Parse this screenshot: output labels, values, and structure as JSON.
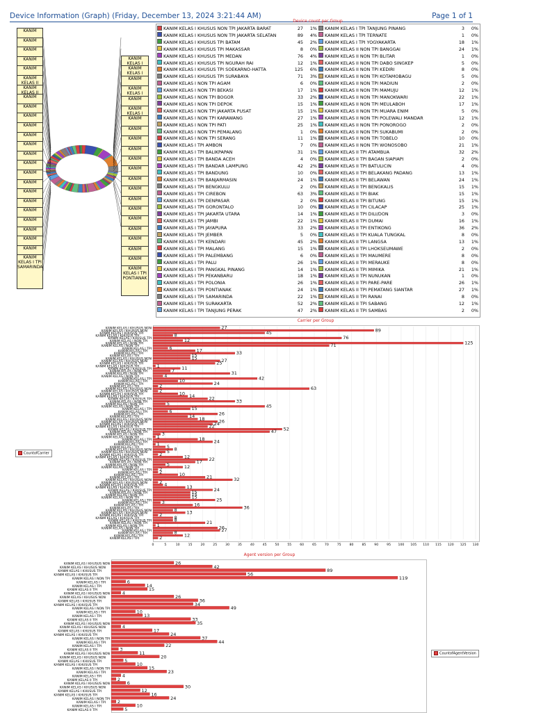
{
  "header": {
    "title": "Device Information (Graph)  (Friday, December 13, 2024 3:21:44 AM)",
    "pages": "Page 1 of 1"
  },
  "colors": {
    "header": "#1f4f96",
    "bar": "#e04040",
    "title_red": "#d32020",
    "label_box": "#fff8c8"
  },
  "chart_data": [
    {
      "type": "pie",
      "title": "Device count per Group",
      "legend_col1": [
        {
          "label": "KANIM KELAS I KHUSUS NON TPI JAKARTA BARAT",
          "value": 27,
          "pct": "1%"
        },
        {
          "label": "KANIM KELAS I KHUSUS NON TPI JAKARTA SELATAN",
          "value": 89,
          "pct": "4%"
        },
        {
          "label": "KANIM KELAS I KHUSUS TPI BATAM",
          "value": 45,
          "pct": "2%"
        },
        {
          "label": "KANIM KELAS I KHUSUS TPI MAKASSAR",
          "value": 8,
          "pct": "0%"
        },
        {
          "label": "KANIM KELAS I KHUSUS TPI MEDAN",
          "value": 76,
          "pct": "4%"
        },
        {
          "label": "KANIM KELAS I KHUSUS TPI NGURAH RAI",
          "value": 12,
          "pct": "1%"
        },
        {
          "label": "KANIM KELAS I KHUSUS TPI SOEKARNO-HATTA",
          "value": 125,
          "pct": "6%"
        },
        {
          "label": "KANIM KELAS I KHUSUS TPI SURABAYA",
          "value": 71,
          "pct": "3%"
        },
        {
          "label": "KANIM KELAS I NON TPI AGAM",
          "value": 6,
          "pct": "0%"
        },
        {
          "label": "KANIM KELAS I NON TPI BEKASI",
          "value": 17,
          "pct": "1%"
        },
        {
          "label": "KANIM KELAS I NON TPI BOGOR",
          "value": 33,
          "pct": "2%"
        },
        {
          "label": "KANIM KELAS I NON TPI DEPOK",
          "value": 15,
          "pct": "1%"
        },
        {
          "label": "KANIM KELAS I NON TPI JAKARTA PUSAT",
          "value": 15,
          "pct": "1%"
        },
        {
          "label": "KANIM KELAS I NON TPI KARAWANG",
          "value": 27,
          "pct": "1%"
        },
        {
          "label": "KANIM KELAS I NON TPI PATI",
          "value": 25,
          "pct": "1%"
        },
        {
          "label": "KANIM KELAS I NON TPI PEMALANG",
          "value": 1,
          "pct": "0%"
        },
        {
          "label": "KANIM KELAS I NON TPI SERANG",
          "value": 11,
          "pct": "1%"
        },
        {
          "label": "KANIM KELAS I TPI AMBON",
          "value": 7,
          "pct": "0%"
        },
        {
          "label": "KANIM KELAS I TPI BALIKPAPAN",
          "value": 31,
          "pct": "1%"
        },
        {
          "label": "KANIM KELAS I TPI BANDA ACEH",
          "value": 4,
          "pct": "0%"
        },
        {
          "label": "KANIM KELAS I TPI BANDAR LAMPUNG",
          "value": 42,
          "pct": "2%"
        },
        {
          "label": "KANIM KELAS I TPI BANDUNG",
          "value": 10,
          "pct": "0%"
        },
        {
          "label": "KANIM KELAS I TPI BANJARMASIN",
          "value": 24,
          "pct": "1%"
        },
        {
          "label": "KANIM KELAS I TPI BENGKULU",
          "value": 2,
          "pct": "0%"
        },
        {
          "label": "KANIM KELAS I TPI CIREBON",
          "value": 63,
          "pct": "3%"
        },
        {
          "label": "KANIM KELAS I TPI DENPASAR",
          "value": 2,
          "pct": "0%"
        },
        {
          "label": "KANIM KELAS I TPI GORONTALO",
          "value": 10,
          "pct": "0%"
        },
        {
          "label": "KANIM KELAS I TPI JAKARTA UTARA",
          "value": 14,
          "pct": "1%"
        },
        {
          "label": "KANIM KELAS I TPI JAMBI",
          "value": 22,
          "pct": "1%"
        },
        {
          "label": "KANIM KELAS I TPI JAYAPURA",
          "value": 33,
          "pct": "2%"
        },
        {
          "label": "KANIM KELAS I TPI JEMBER",
          "value": 5,
          "pct": "0%"
        },
        {
          "label": "KANIM KELAS I TPI KENDARI",
          "value": 45,
          "pct": "2%"
        },
        {
          "label": "KANIM KELAS I TPI MALANG",
          "value": 15,
          "pct": "1%"
        },
        {
          "label": "KANIM KELAS I TPI PALEMBANG",
          "value": 6,
          "pct": "0%"
        },
        {
          "label": "KANIM KELAS I TPI PALU",
          "value": 26,
          "pct": "1%"
        },
        {
          "label": "KANIM KELAS I TPI PANGKAL PINANG",
          "value": 14,
          "pct": "1%"
        },
        {
          "label": "KANIM KELAS I TPI PEKANBARU",
          "value": 18,
          "pct": "1%"
        },
        {
          "label": "KANIM KELAS I TPI POLONIA",
          "value": 26,
          "pct": "1%"
        },
        {
          "label": "KANIM KELAS I TPI PONTIANAK",
          "value": 24,
          "pct": "1%"
        },
        {
          "label": "KANIM KELAS I TPI SAMARINDA",
          "value": 22,
          "pct": "1%"
        },
        {
          "label": "KANIM KELAS I TPI SURAKARTA",
          "value": 52,
          "pct": "2%"
        },
        {
          "label": "KANIM KELAS I TPI TANJUNG PERAK",
          "value": 47,
          "pct": "2%"
        }
      ],
      "legend_col2": [
        {
          "label": "KANIM KELAS I TPI TANJUNG PINANG",
          "value": 3,
          "pct": "0%"
        },
        {
          "label": "KANIM KELAS I TPI TERNATE",
          "value": 1,
          "pct": "0%"
        },
        {
          "label": "KANIM KELAS I TPI YOGYAKARTA",
          "value": 18,
          "pct": "1%"
        },
        {
          "label": "KANIM KELAS II NON TPI BANGGAI",
          "value": 24,
          "pct": "1%"
        },
        {
          "label": "KANIM KELAS II NON TPI BLITAR",
          "value": 1,
          "pct": "0%"
        },
        {
          "label": "KANIM KELAS II NON TPI DABO SINGKEP",
          "value": 5,
          "pct": "0%"
        },
        {
          "label": "KANIM KELAS II NON TPI KEDIRI",
          "value": 8,
          "pct": "0%"
        },
        {
          "label": "KANIM KELAS II NON TPI KOTAMOBAGU",
          "value": 5,
          "pct": "0%"
        },
        {
          "label": "KANIM KELAS II NON TPI MADIUN",
          "value": 2,
          "pct": "0%"
        },
        {
          "label": "KANIM KELAS II NON TPI MAMUJU",
          "value": 12,
          "pct": "1%"
        },
        {
          "label": "KANIM KELAS II NON TPI MANOKWARI",
          "value": 22,
          "pct": "1%"
        },
        {
          "label": "KANIM KELAS II NON TPI MEULABOH",
          "value": 17,
          "pct": "1%"
        },
        {
          "label": "KANIM KELAS II NON TPI MUARA ENIM",
          "value": 5,
          "pct": "0%"
        },
        {
          "label": "KANIM KELAS II NON TPI POLEWALI MANDAR",
          "value": 12,
          "pct": "1%"
        },
        {
          "label": "KANIM KELAS II NON TPI PONOROGO",
          "value": 2,
          "pct": "0%"
        },
        {
          "label": "KANIM KELAS II NON TPI SUKABUMI",
          "value": 2,
          "pct": "0%"
        },
        {
          "label": "KANIM KELAS II NON TPI TOBELO",
          "value": 10,
          "pct": "0%"
        },
        {
          "label": "KANIM KELAS II NON TPI WONOSOBO",
          "value": 21,
          "pct": "1%"
        },
        {
          "label": "KANIM KELAS II TPI ATAMBUA",
          "value": 32,
          "pct": "2%"
        },
        {
          "label": "KANIM KELAS II TPI BAGAN SIAPIAPI",
          "value": 2,
          "pct": "0%"
        },
        {
          "label": "KANIM KELAS II TPI BATULICIN",
          "value": 4,
          "pct": "0%"
        },
        {
          "label": "KANIM KELAS II TPI BELAKANG PADANG",
          "value": 13,
          "pct": "1%"
        },
        {
          "label": "KANIM KELAS II TPI BELAWAN",
          "value": 24,
          "pct": "1%"
        },
        {
          "label": "KANIM KELAS II TPI BENGKALIS",
          "value": 15,
          "pct": "1%"
        },
        {
          "label": "KANIM KELAS II TPI BIAK",
          "value": 15,
          "pct": "1%"
        },
        {
          "label": "KANIM KELAS II TPI BITUNG",
          "value": 15,
          "pct": "1%"
        },
        {
          "label": "KANIM KELAS II TPI CILACAP",
          "value": 25,
          "pct": "1%"
        },
        {
          "label": "KANIM KELAS II TPI DILI/DON",
          "value": 3,
          "pct": "0%"
        },
        {
          "label": "KANIM KELAS II TPI DUMAI",
          "value": 16,
          "pct": "1%"
        },
        {
          "label": "KANIM KELAS II TPI ENTIKONG",
          "value": 36,
          "pct": "2%"
        },
        {
          "label": "KANIM KELAS II TPI KUALA TUNGKAL",
          "value": 8,
          "pct": "0%"
        },
        {
          "label": "KANIM KELAS II TPI LANGSA",
          "value": 13,
          "pct": "1%"
        },
        {
          "label": "KANIM KELAS II TPI LHOKSEUMAWE",
          "value": 2,
          "pct": "0%"
        },
        {
          "label": "KANIM KELAS II TPI MAUMERE",
          "value": 8,
          "pct": "0%"
        },
        {
          "label": "KANIM KELAS II TPI MERAUKE",
          "value": 8,
          "pct": "0%"
        },
        {
          "label": "KANIM KELAS II TPI MIMIKA",
          "value": 21,
          "pct": "1%"
        },
        {
          "label": "KANIM KELAS II TPI NUNUKAN",
          "value": 1,
          "pct": "0%"
        },
        {
          "label": "KANIM KELAS II TPI PARE-PARE",
          "value": 26,
          "pct": "1%"
        },
        {
          "label": "KANIM KELAS II TPI PEMATANG SIANTAR",
          "value": 27,
          "pct": "1%"
        },
        {
          "label": "KANIM KELAS II TPI RANAI",
          "value": 8,
          "pct": "0%"
        },
        {
          "label": "KANIM KELAS II TPI SABANG",
          "value": 12,
          "pct": "1%"
        },
        {
          "label": "KANIM KELAS II TPI SAMBAS",
          "value": 2,
          "pct": "0%"
        }
      ],
      "side_labels_left": [
        "KANIM",
        "KANIM",
        "KANIM",
        "KANIM",
        "KANIM",
        "KANIM KELAS II",
        "KANIM KELAS II",
        "KANIM",
        "KANIM",
        "KANIM",
        "KANIM",
        "KANIM",
        "KANIM",
        "KANIM",
        "KANIM",
        "KANIM",
        "KANIM",
        "KANIM",
        "KANIM",
        "KANIM",
        "KANIM",
        "KANIM",
        "KANIM",
        "KANIM",
        "KANIM KELAS I TPI SAMARINDA"
      ],
      "side_labels_right": [
        "KANIM KELAS I",
        "KANIM KELAS I",
        "KANIM",
        "KANIM KELAS I",
        "KANIM",
        "KANIM KELAS I",
        "KANIM",
        "KANIM",
        "KANIM",
        "KANIM",
        "KANIM",
        "KANIM",
        "KANIM",
        "KANIM",
        "KANIM",
        "KANIM",
        "KANIM",
        "KANIM",
        "KANIM",
        "KANIM",
        "KANIM",
        "KANIM KELAS I TPI PONTIANAK"
      ]
    },
    {
      "type": "bar",
      "title": "Carrier per Group",
      "ytick_labels": [
        "KANIM KELAS I KHUSUS NON",
        "KANIM KELAS I KHUSUS NON",
        "KANIM KELAS I KHUSUS TPI",
        "KANIM KELAS I KHUSUS TPI",
        "KANIM KELAS I KHUSUS TPI",
        "KANIM KELAS I NON TPI",
        "KANIM KELAS I NON TPI",
        "KANIM KELAS I NON TPI",
        "KANIM KELAS I TPI",
        "KANIM KELAS I TPI",
        "KANIM KELAS I TPI",
        "KANIM KELAS I TPI"
      ],
      "values": [
        27,
        89,
        45,
        8,
        76,
        12,
        125,
        71,
        6,
        17,
        33,
        15,
        15,
        27,
        25,
        1,
        11,
        7,
        31,
        4,
        42,
        10,
        24,
        2,
        63,
        2,
        10,
        14,
        22,
        33,
        5,
        45,
        15,
        6,
        26,
        14,
        18,
        26,
        24,
        22,
        52,
        47,
        3,
        1,
        18,
        24,
        1,
        5,
        8,
        5,
        2,
        12,
        22,
        17,
        5,
        12,
        2,
        2,
        10,
        21,
        32,
        2,
        4,
        13,
        24,
        15,
        15,
        15,
        25,
        3,
        16,
        36,
        8,
        13,
        2,
        8,
        8,
        21,
        1,
        26,
        27,
        8,
        12,
        2
      ],
      "xlim": [
        0,
        130
      ],
      "xticks": [
        0,
        5,
        10,
        15,
        20,
        25,
        30,
        35,
        40,
        45,
        50,
        55,
        60,
        65,
        70,
        75,
        80,
        85,
        90,
        95,
        100,
        105,
        110,
        115,
        120,
        125,
        130
      ],
      "legend": "CountofCarrier",
      "legend_position": "left"
    },
    {
      "type": "bar",
      "title": "Agent version per Group",
      "ytick_labels": [
        "KANIM KELAS I KHUSUS NON",
        "KANIM KELAS I KHUSUS NON",
        "KANIM KELAS I KHUSUS TPI",
        "KANIM KELAS I KHUSUS TPI",
        "KANIM KELAS I NON TPI",
        "KANIM KELAS I TPI",
        "KANIM KELAS I TPI",
        "KANIM KELAS II TPI"
      ],
      "values": [
        26,
        42,
        89,
        56,
        119,
        6,
        14,
        15,
        4,
        26,
        36,
        34,
        49,
        10,
        13,
        33,
        35,
        4,
        17,
        24,
        37,
        44,
        22,
        3,
        11,
        20,
        5,
        10,
        15,
        23,
        4,
        2,
        6,
        30,
        12,
        16,
        24,
        2,
        10,
        5
      ],
      "xlim": [
        0,
        130
      ],
      "legend": "CountofAgentVersion",
      "legend_position": "right"
    }
  ]
}
